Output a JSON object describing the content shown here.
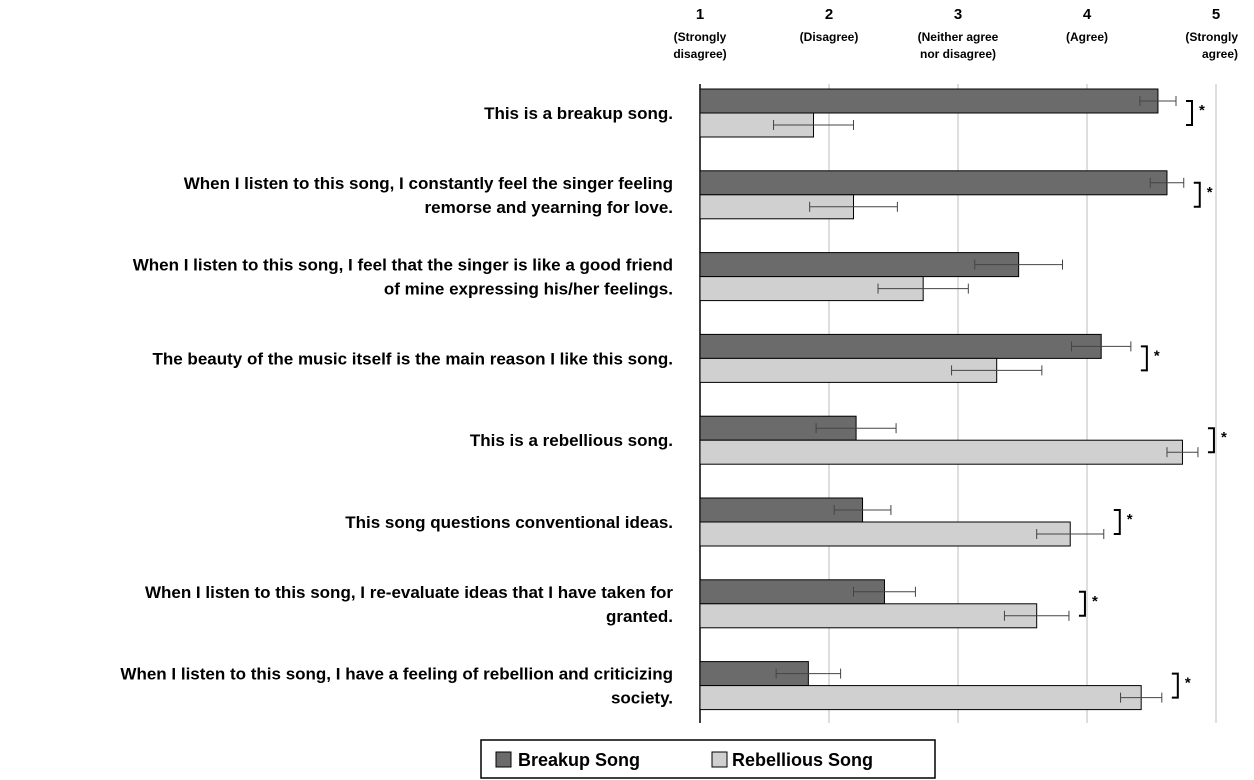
{
  "chart_data": {
    "type": "bar",
    "orientation": "horizontal",
    "xlim": [
      1,
      5
    ],
    "grid": true,
    "legend_placement": "bottom",
    "x_ticks": [
      {
        "value": 1,
        "label": "1",
        "desc": [
          "(Strongly",
          "disagree)"
        ]
      },
      {
        "value": 2,
        "label": "2",
        "desc": [
          "(Disagree)"
        ]
      },
      {
        "value": 3,
        "label": "3",
        "desc": [
          "(Neither agree",
          "nor disagree)"
        ]
      },
      {
        "value": 4,
        "label": "4",
        "desc": [
          "(Agree)"
        ]
      },
      {
        "value": 5,
        "label": "5",
        "desc": [
          "(Strongly",
          "agree)"
        ]
      }
    ],
    "categories": [
      [
        "This is a breakup song."
      ],
      [
        "When I listen to this song, I constantly feel the singer feeling",
        "remorse and yearning for love."
      ],
      [
        "When I listen to this song, I feel that the singer is like a good friend",
        "of mine expressing his/her feelings."
      ],
      [
        "The beauty of the music itself is the main reason I like this song."
      ],
      [
        "This is a rebellious song."
      ],
      [
        "This song questions conventional ideas."
      ],
      [
        "When I listen to this song, I re-evaluate ideas that I have taken for",
        "granted."
      ],
      [
        "When I listen to this song, I have a feeling of rebellion and criticizing",
        "society."
      ]
    ],
    "series": [
      {
        "name": "Breakup Song",
        "color": "#6b6b6b",
        "values": [
          4.55,
          4.62,
          3.47,
          4.11,
          2.21,
          2.26,
          2.43,
          1.84
        ],
        "errors": [
          0.14,
          0.13,
          0.34,
          0.23,
          0.31,
          0.22,
          0.24,
          0.25
        ]
      },
      {
        "name": "Rebellious Song",
        "color": "#d0d0d0",
        "values": [
          1.88,
          2.19,
          2.73,
          3.3,
          4.74,
          3.87,
          3.61,
          4.42
        ],
        "errors": [
          0.31,
          0.34,
          0.35,
          0.35,
          0.12,
          0.26,
          0.25,
          0.16
        ]
      }
    ],
    "significance_marker": "*",
    "significant": [
      true,
      true,
      false,
      true,
      true,
      true,
      true,
      true
    ]
  }
}
